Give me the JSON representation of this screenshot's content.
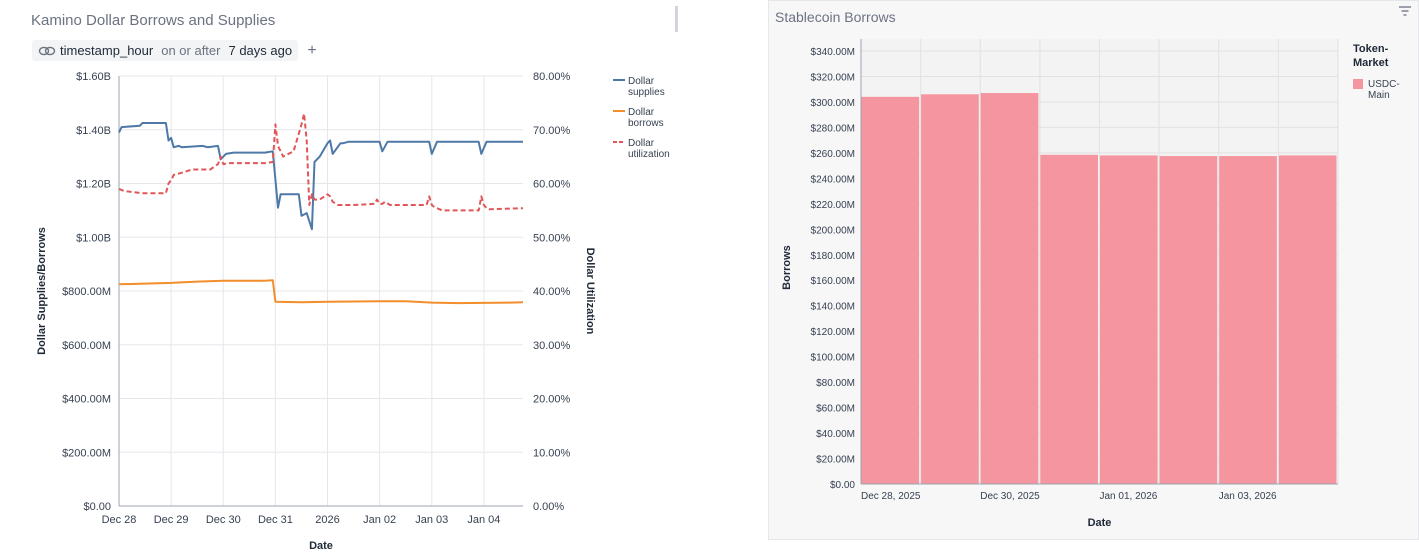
{
  "left": {
    "title": "Kamino Dollar Borrows and Supplies",
    "filter": {
      "field": "timestamp_hour",
      "operator": "on or after",
      "value": "7 days ago",
      "add_label": "+"
    }
  },
  "right": {
    "title": "Stablecoin Borrows"
  },
  "colors": {
    "supplies": "#4e79a7",
    "borrows": "#f28e2b",
    "utilization": "#e15759",
    "bar": "#f4959f"
  },
  "chart_data": [
    {
      "type": "line",
      "title": "Kamino Dollar Borrows and Supplies",
      "xlabel": "Date",
      "ylabel": "Dollar Supplies/Borrows",
      "y2label": "Dollar Utilization",
      "x_ticks": [
        "Dec 28",
        "Dec 29",
        "Dec 30",
        "Dec 31",
        "2026",
        "Jan 02",
        "Jan 03",
        "Jan 04"
      ],
      "xlim": [
        0,
        7.75
      ],
      "ylim": [
        0,
        1.6
      ],
      "y2lim": [
        0,
        80
      ],
      "y_ticks": [
        "$0.00",
        "$200.00M",
        "$400.00M",
        "$600.00M",
        "$800.00M",
        "$1.00B",
        "$1.20B",
        "$1.40B",
        "$1.60B"
      ],
      "y2_ticks": [
        "0.00%",
        "10.00%",
        "20.00%",
        "30.00%",
        "40.00%",
        "50.00%",
        "60.00%",
        "70.00%",
        "80.00%"
      ],
      "legend": [
        "Dollar supplies",
        "Dollar borrows",
        "Dollar utilization"
      ],
      "series": [
        {
          "name": "Dollar supplies",
          "axis": "left",
          "x": [
            0,
            0.05,
            0.4,
            0.45,
            0.9,
            0.95,
            1.0,
            1.05,
            1.15,
            1.2,
            1.6,
            1.7,
            1.9,
            1.95,
            2.05,
            2.2,
            2.8,
            2.95,
            3.05,
            3.1,
            3.2,
            3.45,
            3.5,
            3.6,
            3.7,
            3.75,
            3.85,
            4.0,
            4.05,
            4.1,
            4.25,
            4.3,
            4.4,
            4.5,
            5.0,
            5.05,
            5.15,
            5.2,
            5.95,
            6.0,
            6.1,
            6.15,
            6.9,
            6.95,
            7.05,
            7.1,
            7.75
          ],
          "values": [
            1.39,
            1.41,
            1.415,
            1.425,
            1.425,
            1.36,
            1.37,
            1.335,
            1.34,
            1.335,
            1.34,
            1.335,
            1.34,
            1.29,
            1.31,
            1.315,
            1.315,
            1.32,
            1.11,
            1.16,
            1.16,
            1.16,
            1.08,
            1.09,
            1.03,
            1.28,
            1.3,
            1.35,
            1.36,
            1.31,
            1.35,
            1.35,
            1.355,
            1.355,
            1.355,
            1.32,
            1.355,
            1.355,
            1.355,
            1.31,
            1.355,
            1.355,
            1.355,
            1.31,
            1.355,
            1.355,
            1.355
          ]
        },
        {
          "name": "Dollar borrows",
          "axis": "left",
          "x": [
            0,
            1.0,
            1.5,
            2.0,
            2.8,
            2.95,
            3.0,
            3.5,
            4.0,
            5.0,
            5.5,
            6.0,
            6.5,
            7.5,
            7.75
          ],
          "values": [
            0.825,
            0.83,
            0.835,
            0.838,
            0.838,
            0.84,
            0.76,
            0.758,
            0.76,
            0.762,
            0.762,
            0.757,
            0.755,
            0.757,
            0.758
          ]
        },
        {
          "name": "Dollar utilization",
          "axis": "right",
          "x": [
            0,
            0.1,
            0.45,
            0.9,
            0.95,
            1.0,
            1.05,
            1.2,
            1.4,
            1.75,
            1.9,
            1.95,
            2.0,
            2.1,
            2.2,
            2.8,
            2.95,
            3.0,
            3.05,
            3.15,
            3.35,
            3.5,
            3.55,
            3.6,
            3.65,
            3.7,
            3.75,
            3.85,
            4.0,
            4.05,
            4.1,
            4.2,
            4.5,
            4.9,
            4.95,
            5.0,
            5.05,
            5.1,
            5.2,
            5.9,
            5.95,
            6.0,
            6.05,
            6.1,
            6.2,
            6.9,
            6.95,
            7.0,
            7.05,
            7.1,
            7.75
          ],
          "values": [
            59,
            58.6,
            58.2,
            58.2,
            60,
            60.6,
            61.6,
            62,
            62.6,
            62.6,
            63.6,
            65,
            63.6,
            63.8,
            63.8,
            63.8,
            64,
            71,
            67,
            65,
            66,
            71,
            73,
            68,
            56,
            58,
            57,
            57,
            58,
            57.6,
            56.6,
            56,
            56,
            56.2,
            57,
            56.2,
            56.2,
            56.6,
            56,
            56,
            57.6,
            56,
            55.6,
            55.4,
            55,
            55,
            57.6,
            56,
            55.4,
            55.2,
            55.4
          ]
        }
      ]
    },
    {
      "type": "bar",
      "title": "Stablecoin Borrows",
      "xlabel": "Date",
      "ylabel": "Borrows",
      "x_ticks": [
        "Dec 28, 2025",
        "Dec 30, 2025",
        "Jan 01, 2026",
        "Jan 03, 2026"
      ],
      "categories": [
        "Dec 28, 2025",
        "Dec 29, 2025",
        "Dec 30, 2025",
        "Dec 31, 2025",
        "Jan 01, 2026",
        "Jan 02, 2026",
        "Jan 03, 2026",
        "Jan 04, 2026"
      ],
      "values": [
        304,
        306,
        307,
        258.5,
        258,
        257.5,
        257.5,
        258
      ],
      "ylim": [
        0,
        340
      ],
      "y_ticks": [
        "$0.00",
        "$20.00M",
        "$40.00M",
        "$60.00M",
        "$80.00M",
        "$100.00M",
        "$120.00M",
        "$140.00M",
        "$160.00M",
        "$180.00M",
        "$200.00M",
        "$220.00M",
        "$240.00M",
        "$260.00M",
        "$280.00M",
        "$300.00M",
        "$320.00M",
        "$340.00M"
      ],
      "legend_title": "Token-Market",
      "legend": [
        "USDC-Main"
      ]
    }
  ]
}
